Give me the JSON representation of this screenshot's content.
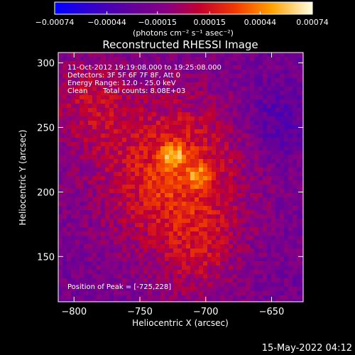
{
  "chart_data": {
    "type": "heatmap",
    "title": "Reconstructed RHESSI Image",
    "xlabel": "Heliocentric X (arcsec)",
    "ylabel": "Heliocentric Y (arcsec)",
    "xlim": [
      -812,
      -626
    ],
    "ylim": [
      115,
      308
    ],
    "xticks": [
      -800,
      -750,
      -700,
      -650
    ],
    "yticks": [
      150,
      200,
      250,
      300
    ],
    "colorbar": {
      "range": [
        -0.00074,
        0.00074
      ],
      "ticks": [
        -0.00074,
        -0.00044,
        -0.00015,
        0.00015,
        0.00044,
        0.00074
      ],
      "tick_labels": [
        "-0.00074",
        "-0.00044",
        "-0.00015",
        "0.00015",
        "0.00044",
        "0.00074"
      ],
      "unit": "(photons cm⁻² s⁻¹ asec⁻²)"
    },
    "peaks": [
      {
        "x": -725,
        "y": 228,
        "value": 0.00074
      },
      {
        "x": -705,
        "y": 212,
        "value": 0.00066
      },
      {
        "x": -738,
        "y": 200,
        "value": 0.0004
      },
      {
        "x": -715,
        "y": 192,
        "value": 0.00032
      }
    ],
    "annotations": {
      "time_range": "11-Oct-2012 19:19:08.000 to 19:25:08.000",
      "detectors": "Detectors: 3F 5F 6F 7F 8F, Att 0",
      "energy_range": "Energy Range: 12.0 - 25.0 keV",
      "clean_label": "Clean",
      "total_counts": "Total counts: 8.08E+03",
      "peak_position": "Position of Peak = [-725,228]"
    },
    "timestamp": "15-May-2022 04:12",
    "colors": {
      "background": "#000000",
      "text": "#ffffff"
    }
  }
}
